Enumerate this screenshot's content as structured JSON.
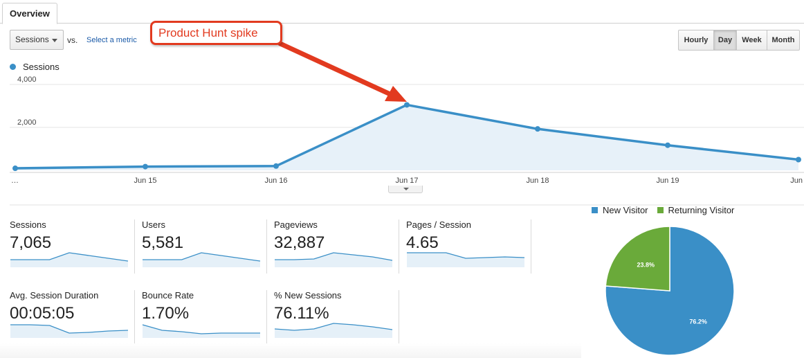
{
  "tabs": {
    "overview": "Overview"
  },
  "controls": {
    "metric_selected": "Sessions",
    "vs_label": "vs.",
    "select_metric": "Select a metric",
    "granularity": {
      "hourly": "Hourly",
      "day": "Day",
      "week": "Week",
      "month": "Month",
      "active": "Day"
    }
  },
  "annotation": "Product Hunt spike",
  "colors": {
    "sessions": "#3a8fc7",
    "new_visitor": "#3a8fc7",
    "returning_visitor": "#6aaa3a",
    "annotation": "#e23a1f"
  },
  "chart_data": [
    {
      "type": "area",
      "series": [
        {
          "name": "Sessions",
          "values": [
            95,
            175,
            200,
            3050,
            1930,
            1170,
            500
          ]
        }
      ],
      "categories": [
        "…",
        "Jun 15",
        "Jun 16",
        "Jun 17",
        "Jun 18",
        "Jun 19",
        "Jun"
      ],
      "ylim": [
        0,
        4000
      ],
      "yticks": [
        "4,000",
        "2,000"
      ],
      "grid": true,
      "legend": "top-left"
    },
    {
      "type": "pie",
      "series": [
        {
          "name": "New Visitor",
          "value": 76.2,
          "label": "76.2%"
        },
        {
          "name": "Returning Visitor",
          "value": 23.8,
          "label": "23.8%"
        }
      ],
      "legend": "top"
    }
  ],
  "scorecards": [
    {
      "label": "Sessions",
      "value": "7,065",
      "spark": [
        5,
        5,
        5,
        10,
        8,
        6,
        4
      ]
    },
    {
      "label": "Users",
      "value": "5,581",
      "spark": [
        5,
        5,
        5,
        10,
        8,
        6,
        4
      ]
    },
    {
      "label": "Pageviews",
      "value": "32,887",
      "spark": [
        5,
        5,
        5.5,
        10,
        8.5,
        7,
        4.5
      ]
    },
    {
      "label": "Pages / Session",
      "value": "4.65",
      "spark": [
        10,
        10,
        10,
        6,
        6.5,
        7,
        6.5
      ]
    },
    {
      "label": "Avg. Session Duration",
      "value": "00:05:05",
      "spark": [
        9,
        9,
        8.5,
        3,
        3.5,
        4.5,
        5
      ]
    },
    {
      "label": "Bounce Rate",
      "value": "1.70%",
      "spark": [
        9,
        5,
        4,
        2.5,
        3,
        3,
        3
      ]
    },
    {
      "label": "% New Sessions",
      "value": "76.11%",
      "spark": [
        6,
        5,
        6,
        10,
        9,
        7.5,
        5.5
      ]
    }
  ]
}
